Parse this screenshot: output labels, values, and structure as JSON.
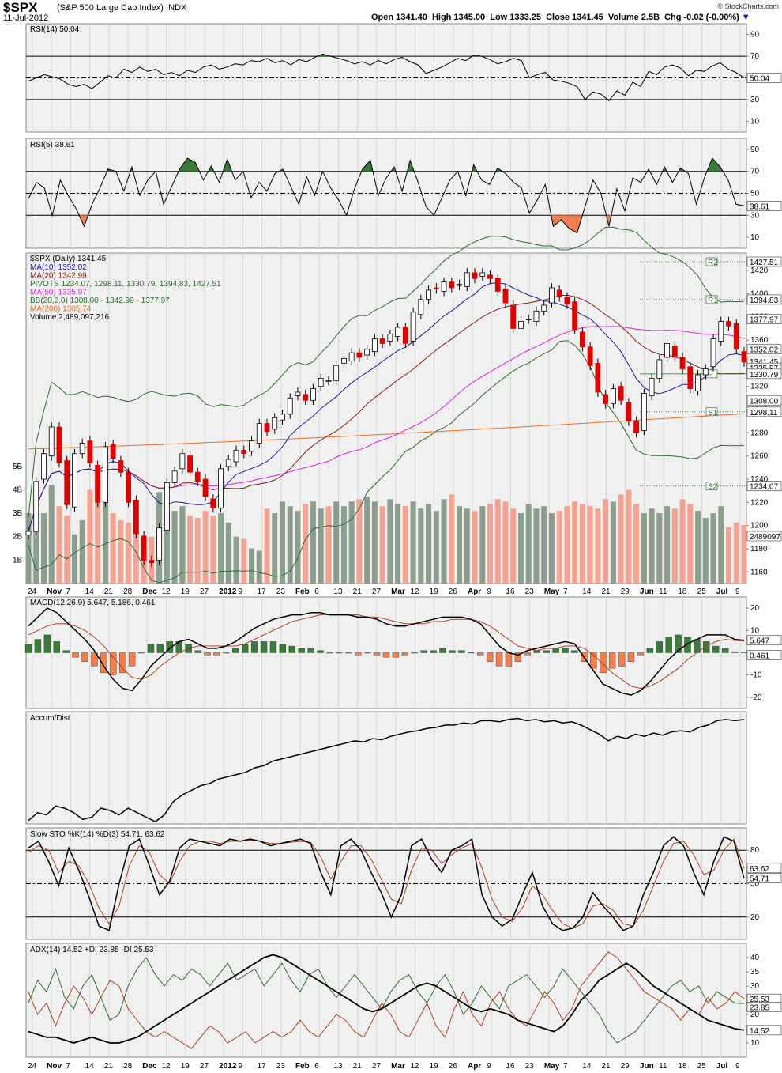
{
  "header": {
    "symbol": "$SPX",
    "name": "(S&P 500 Large Cap Index)",
    "exchange": "INDX",
    "date": "11-Jul-2012",
    "copyright": "© StockCharts.com",
    "open_label": "Open",
    "open": "1341.40",
    "high_label": "High",
    "high": "1345.00",
    "low_label": "Low",
    "low": "1333.25",
    "close_label": "Close",
    "close": "1341.45",
    "volume_label": "Volume",
    "volume": "2.5B",
    "chg_label": "Chg",
    "chg": "-0.02 (-0.00%)",
    "chg_arrow": "▼"
  },
  "colors": {
    "panel_bg": "#f0f0f0",
    "up": "#000000",
    "down": "#e00000",
    "volume_up": "#8c9e8c",
    "volume_down": "#f4a393",
    "pos_fill": "#3a7a3a",
    "neg_fill": "#f08050",
    "ma10": "#1a1aa0",
    "ma20": "#8b1a1a",
    "ma50": "#e020e0",
    "ma200": "#e87020",
    "bb": "#2d6e2d",
    "pivots": "#2d6e2d",
    "macd_signal": "#b04020",
    "sto_d": "#b04020",
    "adx_plus": "#2d6e2d",
    "adx_minus": "#b04020"
  },
  "x_axis": {
    "labels": [
      "24",
      "Nov",
      "7",
      "14",
      "21",
      "28",
      "Dec",
      "12",
      "19",
      "27",
      "2012",
      "9",
      "17",
      "23",
      "Feb",
      "6",
      "13",
      "21",
      "27",
      "Mar",
      "12",
      "19",
      "26",
      "Apr",
      "9",
      "16",
      "23",
      "May",
      "7",
      "14",
      "21",
      "29",
      "Jun",
      "11",
      "18",
      "25",
      "Jul",
      "9"
    ],
    "bold": [
      "Nov",
      "Dec",
      "2012",
      "Feb",
      "Mar",
      "Apr",
      "May",
      "Jun",
      "Jul"
    ]
  },
  "chart_data": [
    {
      "type": "line",
      "title": "RSI(14) 50.04",
      "ylabel": "",
      "ylim": [
        0,
        100
      ],
      "yticks": [
        "90",
        "70",
        "50",
        "30",
        "10"
      ],
      "guides": [
        70,
        50,
        30
      ],
      "last_value": "50.04",
      "values": [
        47,
        50,
        53,
        51,
        49,
        44,
        42,
        44,
        40,
        46,
        52,
        50,
        58,
        55,
        60,
        56,
        58,
        53,
        55,
        52,
        57,
        55,
        60,
        62,
        58,
        60,
        63,
        62,
        66,
        65,
        68,
        64,
        66,
        62,
        67,
        65,
        69,
        72,
        70,
        68,
        66,
        63,
        65,
        62,
        66,
        63,
        67,
        69,
        65,
        62,
        54,
        57,
        60,
        64,
        68,
        66,
        71,
        70,
        67,
        63,
        65,
        68,
        66,
        50,
        53,
        55,
        48,
        47,
        45,
        42,
        30,
        37,
        35,
        29,
        38,
        34,
        46,
        42,
        56,
        53,
        60,
        62,
        59,
        52,
        57,
        56,
        61,
        64,
        58,
        55,
        50
      ]
    },
    {
      "type": "line",
      "title": "RSI(5) 38.61",
      "ylim": [
        0,
        100
      ],
      "yticks": [
        "90",
        "70",
        "50",
        "30",
        "10"
      ],
      "guides": [
        70,
        50,
        30
      ],
      "last_value": "38.61",
      "values": [
        45,
        60,
        55,
        30,
        62,
        48,
        36,
        20,
        40,
        55,
        72,
        70,
        52,
        74,
        48,
        62,
        70,
        40,
        56,
        72,
        82,
        78,
        62,
        75,
        60,
        81,
        62,
        70,
        46,
        60,
        52,
        68,
        72,
        56,
        40,
        65,
        48,
        70,
        55,
        44,
        30,
        54,
        72,
        80,
        48,
        64,
        74,
        52,
        80,
        60,
        38,
        30,
        46,
        62,
        70,
        48,
        76,
        62,
        58,
        73,
        68,
        60,
        55,
        32,
        44,
        58,
        20,
        26,
        18,
        14,
        38,
        62,
        50,
        20,
        54,
        34,
        64,
        60,
        72,
        58,
        74,
        60,
        73,
        68,
        40,
        64,
        82,
        74,
        62,
        40,
        38.6
      ]
    },
    {
      "type": "candlestick",
      "title": "$SPX (Daily) 1341.45",
      "ylim": [
        1150,
        1435
      ],
      "yticks": [
        "1420",
        "1400",
        "1380",
        "1360",
        "1340",
        "1320",
        "1300",
        "1280",
        "1260",
        "1240",
        "1220",
        "1200",
        "1180",
        "1160"
      ],
      "series_legend": [
        {
          "name": "MA(10) 1352.02",
          "color": "#1a1aa0"
        },
        {
          "name": "MA(20) 1342.99",
          "color": "#8b1a1a"
        },
        {
          "name": "PIVOTS 1234.07, 1298.11, 1330.79, 1394.83, 1427.51",
          "color": "#2d6e2d"
        },
        {
          "name": "MA(50) 1335.97",
          "color": "#e020e0"
        },
        {
          "name": "BB(20,2.0) 1308.00 - 1342.99 - 1377.97",
          "color": "#2d6e2d"
        },
        {
          "name": "MA(200) 1305.74",
          "color": "#e87020"
        },
        {
          "name": "Volume 2,489,097,216",
          "color": "#000000"
        }
      ],
      "right_labels": [
        "1427.51",
        "1394.83",
        "1377.97",
        "1352.02",
        "1341.45",
        "1335.97",
        "1330.79",
        "1308.00",
        "1298.11",
        "1234.07",
        "2489097"
      ],
      "pivot_labels": [
        "R2",
        "R1",
        "P",
        "S1",
        "S2"
      ],
      "volume_axis": [
        "5B",
        "4B",
        "3B",
        "2B",
        "1B"
      ],
      "closes": [
        1195,
        1238,
        1262,
        1285,
        1254,
        1218,
        1262,
        1271,
        1254,
        1220,
        1268,
        1258,
        1246,
        1220,
        1193,
        1170,
        1168,
        1198,
        1237,
        1247,
        1262,
        1246,
        1238,
        1225,
        1215,
        1249,
        1257,
        1265,
        1262,
        1273,
        1288,
        1281,
        1293,
        1296,
        1310,
        1315,
        1308,
        1318,
        1327,
        1325,
        1338,
        1344,
        1349,
        1345,
        1352,
        1361,
        1357,
        1365,
        1371,
        1357,
        1384,
        1395,
        1403,
        1404,
        1410,
        1405,
        1408,
        1418,
        1413,
        1418,
        1413,
        1402,
        1392,
        1370,
        1376,
        1378,
        1385,
        1390,
        1405,
        1397,
        1391,
        1369,
        1354,
        1338,
        1315,
        1305,
        1318,
        1308,
        1290,
        1280,
        1314,
        1327,
        1343,
        1357,
        1345,
        1335,
        1318,
        1330,
        1335,
        1361,
        1376,
        1372,
        1352,
        1341
      ],
      "volumes": [
        3.0,
        3.4,
        3.0,
        4.2,
        3.3,
        2.9,
        2.1,
        2.7,
        4.0,
        4.5,
        3.8,
        3.0,
        2.7,
        2.6,
        2.3,
        1.4,
        2.0,
        3.9,
        3.2,
        3.1,
        3.3,
        2.9,
        2.8,
        3.1,
        2.9,
        3.0,
        2.6,
        2.0,
        1.9,
        1.5,
        1.4,
        3.2,
        3.0,
        3.5,
        3.3,
        3.1,
        3.4,
        3.5,
        3.2,
        3.3,
        3.5,
        3.3,
        3.5,
        3.6,
        3.7,
        3.5,
        3.3,
        3.6,
        3.4,
        3.3,
        3.5,
        3.2,
        3.4,
        3.1,
        3.6,
        3.8,
        3.3,
        3.2,
        3.1,
        3.3,
        3.4,
        3.6,
        3.5,
        3.2,
        3.0,
        3.4,
        3.2,
        3.3,
        3.0,
        3.1,
        3.3,
        3.5,
        3.4,
        3.3,
        3.2,
        3.6,
        3.5,
        3.8,
        4.0,
        3.4,
        3.0,
        3.2,
        3.0,
        3.3,
        3.2,
        3.6,
        3.4,
        3.1,
        2.8,
        3.0,
        3.3,
        2.4,
        2.6,
        2.5
      ]
    },
    {
      "type": "line",
      "title": "MACD(12,26,9) 5.647, 5.186, 0.461",
      "ylim": [
        -25,
        25
      ],
      "yticks": [
        "20",
        "10",
        "-10",
        "-20"
      ],
      "zero": "0",
      "last_values": [
        "5.647",
        "0.461"
      ],
      "macd": [
        12,
        16,
        20,
        18,
        14,
        10,
        6,
        1,
        -6,
        -12,
        -16,
        -17,
        -12,
        -6,
        -2,
        2,
        5,
        6,
        4,
        2,
        2,
        3,
        5,
        8,
        11,
        13,
        15,
        16,
        17,
        17,
        18,
        18,
        17,
        17,
        17,
        16,
        16,
        15,
        13,
        12,
        12,
        13,
        14,
        15,
        16,
        16,
        16,
        15,
        13,
        8,
        3,
        0,
        -1,
        1,
        2,
        3,
        4,
        5,
        4,
        -2,
        -8,
        -14,
        -16,
        -18,
        -19,
        -17,
        -13,
        -8,
        -3,
        1,
        4,
        6,
        8,
        8,
        8,
        6,
        5.6
      ],
      "signal": [
        8,
        10,
        12,
        13,
        13,
        12,
        10,
        7,
        3,
        -2,
        -7,
        -11,
        -12,
        -10,
        -6,
        -3,
        0,
        2,
        3,
        3,
        3,
        3,
        3,
        4,
        6,
        8,
        10,
        12,
        14,
        15,
        16,
        17,
        17,
        17,
        17,
        17,
        16,
        16,
        15,
        14,
        13,
        13,
        13,
        14,
        14,
        15,
        15,
        15,
        14,
        12,
        9,
        6,
        3,
        2,
        1,
        2,
        2,
        3,
        3,
        2,
        -1,
        -5,
        -9,
        -12,
        -15,
        -16,
        -15,
        -13,
        -10,
        -7,
        -3,
        0,
        3,
        5,
        6,
        5.5,
        5.2
      ]
    },
    {
      "type": "line",
      "title": "Accum/Dist",
      "ylim": [
        0,
        100
      ],
      "values": [
        3,
        10,
        8,
        16,
        14,
        10,
        4,
        6,
        14,
        12,
        8,
        14,
        10,
        6,
        2,
        8,
        20,
        26,
        30,
        34,
        36,
        40,
        42,
        44,
        46,
        50,
        52,
        56,
        58,
        60,
        62,
        64,
        66,
        68,
        70,
        72,
        74,
        73,
        76,
        75,
        78,
        80,
        82,
        83,
        85,
        86,
        88,
        88,
        90,
        89,
        92,
        92,
        91,
        93,
        94,
        92,
        93,
        91,
        92,
        90,
        91,
        88,
        84,
        80,
        74,
        78,
        76,
        80,
        78,
        81,
        79,
        82,
        83,
        82,
        86,
        88,
        92,
        93,
        92,
        93
      ]
    },
    {
      "type": "line",
      "title": "Slow STO %K(14) %D(3) 54.71, 63.62",
      "ylim": [
        0,
        100
      ],
      "yticks": [
        "80",
        "50",
        "20"
      ],
      "guides": [
        80,
        50,
        20
      ],
      "last_values": [
        "63.62",
        "54.71"
      ],
      "k": [
        82,
        88,
        70,
        48,
        82,
        62,
        38,
        12,
        8,
        50,
        84,
        90,
        66,
        40,
        52,
        82,
        90,
        88,
        86,
        84,
        90,
        88,
        90,
        88,
        84,
        86,
        88,
        90,
        86,
        60,
        40,
        84,
        90,
        80,
        60,
        42,
        20,
        40,
        84,
        90,
        72,
        60,
        80,
        84,
        90,
        40,
        20,
        12,
        18,
        40,
        60,
        30,
        14,
        8,
        10,
        20,
        42,
        30,
        20,
        8,
        12,
        40,
        60,
        84,
        92,
        84,
        60,
        40,
        70,
        92,
        88,
        54.71
      ],
      "d": [
        78,
        84,
        80,
        60,
        70,
        66,
        50,
        28,
        14,
        30,
        66,
        84,
        78,
        58,
        50,
        70,
        84,
        88,
        88,
        86,
        88,
        88,
        89,
        88,
        86,
        86,
        87,
        88,
        87,
        74,
        54,
        70,
        84,
        84,
        72,
        54,
        36,
        32,
        62,
        82,
        80,
        68,
        76,
        82,
        86,
        64,
        36,
        20,
        16,
        28,
        48,
        40,
        26,
        14,
        10,
        14,
        30,
        32,
        26,
        14,
        12,
        26,
        48,
        70,
        86,
        88,
        76,
        58,
        62,
        80,
        90,
        63.62
      ]
    },
    {
      "type": "line",
      "title": "ADX(14) 14.52 +DI 23.85 -DI 25.53",
      "ylim": [
        5,
        45
      ],
      "yticks": [
        "40",
        "35",
        "30",
        "25",
        "20",
        "15",
        "10"
      ],
      "last_values": [
        "25.53",
        "23.85",
        "14.52"
      ],
      "adx": [
        14,
        13,
        12,
        12,
        11,
        10,
        11,
        12,
        11,
        10,
        10,
        11,
        12,
        14,
        16,
        18,
        20,
        22,
        24,
        26,
        28,
        30,
        32,
        34,
        36,
        38,
        40,
        41,
        40,
        38,
        36,
        34,
        32,
        30,
        28,
        26,
        24,
        22,
        21,
        22,
        24,
        26,
        28,
        30,
        31,
        30,
        28,
        26,
        24,
        22,
        21,
        22,
        21,
        20,
        18,
        17,
        16,
        15,
        14,
        16,
        20,
        25,
        28,
        32,
        34,
        36,
        38,
        36,
        33,
        30,
        28,
        26,
        24,
        22,
        20,
        18,
        17,
        16,
        15,
        14.5
      ],
      "plus_di": [
        24,
        32,
        28,
        36,
        26,
        22,
        30,
        34,
        26,
        18,
        20,
        30,
        36,
        40,
        34,
        30,
        34,
        32,
        36,
        34,
        30,
        34,
        38,
        32,
        34,
        36,
        30,
        34,
        38,
        32,
        28,
        34,
        36,
        30,
        26,
        30,
        34,
        30,
        26,
        22,
        28,
        32,
        34,
        28,
        24,
        30,
        34,
        28,
        20,
        24,
        30,
        26,
        22,
        30,
        32,
        34,
        30,
        26,
        30,
        36,
        32,
        28,
        24,
        20,
        14,
        10,
        12,
        14,
        18,
        22,
        26,
        30,
        32,
        28,
        30,
        24,
        28,
        26,
        24,
        23.85
      ],
      "minus_di": [
        28,
        20,
        24,
        16,
        24,
        30,
        26,
        20,
        26,
        32,
        30,
        22,
        18,
        14,
        12,
        14,
        12,
        10,
        8,
        12,
        16,
        14,
        10,
        12,
        14,
        10,
        12,
        14,
        12,
        14,
        18,
        14,
        12,
        16,
        20,
        18,
        14,
        12,
        18,
        24,
        20,
        14,
        12,
        18,
        24,
        16,
        12,
        22,
        28,
        20,
        16,
        24,
        28,
        22,
        18,
        16,
        22,
        28,
        24,
        18,
        22,
        30,
        34,
        38,
        42,
        40,
        36,
        32,
        28,
        26,
        24,
        22,
        18,
        22,
        20,
        26,
        22,
        24,
        28,
        25.53
      ]
    }
  ]
}
